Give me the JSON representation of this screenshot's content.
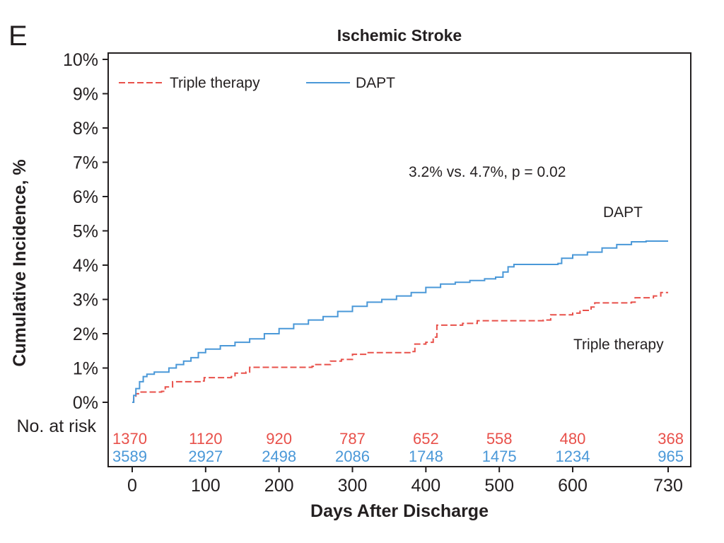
{
  "panel_label": "E",
  "chart_data": {
    "type": "line",
    "title": "Ischemic Stroke",
    "xlabel": "Days After Discharge",
    "ylabel": "Cumulative Incidence, %",
    "xlim": [
      0,
      730
    ],
    "ylim": [
      0,
      10
    ],
    "x_ticks": [
      0,
      100,
      200,
      300,
      400,
      500,
      600,
      730
    ],
    "x_tick_labels": [
      "0",
      "100",
      "200",
      "300",
      "400",
      "500",
      "600",
      "730"
    ],
    "y_ticks": [
      0,
      1,
      2,
      3,
      4,
      5,
      6,
      7,
      8,
      9,
      10
    ],
    "y_tick_labels": [
      "0%",
      "1%",
      "2%",
      "3%",
      "4%",
      "5%",
      "6%",
      "7%",
      "8%",
      "9%",
      "10%"
    ],
    "legend": {
      "placement": "top-left",
      "entries": [
        {
          "label": "Triple therapy",
          "color": "#e8504a",
          "style": "dashed"
        },
        {
          "label": "DAPT",
          "color": "#4a98d8",
          "style": "solid"
        }
      ]
    },
    "annotations": {
      "stat": "3.2% vs. 4.7%, p = 0.02",
      "dapt_label": "DAPT",
      "triple_label": "Triple therapy"
    },
    "series": [
      {
        "name": "Triple therapy",
        "color": "#e8504a",
        "style": "dashed",
        "points": [
          [
            0,
            0
          ],
          [
            2,
            0.15
          ],
          [
            5,
            0.25
          ],
          [
            10,
            0.3
          ],
          [
            40,
            0.32
          ],
          [
            45,
            0.45
          ],
          [
            55,
            0.6
          ],
          [
            95,
            0.62
          ],
          [
            98,
            0.72
          ],
          [
            135,
            0.75
          ],
          [
            140,
            0.85
          ],
          [
            155,
            0.88
          ],
          [
            160,
            1.02
          ],
          [
            245,
            1.05
          ],
          [
            250,
            1.1
          ],
          [
            270,
            1.2
          ],
          [
            285,
            1.25
          ],
          [
            300,
            1.4
          ],
          [
            320,
            1.45
          ],
          [
            380,
            1.48
          ],
          [
            385,
            1.7
          ],
          [
            400,
            1.75
          ],
          [
            410,
            1.9
          ],
          [
            415,
            2.25
          ],
          [
            450,
            2.3
          ],
          [
            470,
            2.38
          ],
          [
            560,
            2.4
          ],
          [
            570,
            2.55
          ],
          [
            600,
            2.6
          ],
          [
            610,
            2.68
          ],
          [
            625,
            2.78
          ],
          [
            630,
            2.9
          ],
          [
            680,
            2.92
          ],
          [
            685,
            3.05
          ],
          [
            710,
            3.1
          ],
          [
            720,
            3.2
          ],
          [
            730,
            3.2
          ]
        ]
      },
      {
        "name": "DAPT",
        "color": "#4a98d8",
        "style": "solid",
        "points": [
          [
            0,
            0
          ],
          [
            2,
            0.2
          ],
          [
            5,
            0.4
          ],
          [
            10,
            0.6
          ],
          [
            15,
            0.75
          ],
          [
            20,
            0.82
          ],
          [
            30,
            0.88
          ],
          [
            50,
            1.0
          ],
          [
            60,
            1.1
          ],
          [
            70,
            1.2
          ],
          [
            80,
            1.3
          ],
          [
            90,
            1.45
          ],
          [
            100,
            1.55
          ],
          [
            120,
            1.65
          ],
          [
            140,
            1.75
          ],
          [
            160,
            1.85
          ],
          [
            180,
            2.0
          ],
          [
            200,
            2.15
          ],
          [
            220,
            2.28
          ],
          [
            240,
            2.4
          ],
          [
            260,
            2.5
          ],
          [
            280,
            2.65
          ],
          [
            300,
            2.8
          ],
          [
            320,
            2.92
          ],
          [
            340,
            3.0
          ],
          [
            360,
            3.1
          ],
          [
            380,
            3.2
          ],
          [
            400,
            3.35
          ],
          [
            420,
            3.45
          ],
          [
            440,
            3.5
          ],
          [
            460,
            3.55
          ],
          [
            480,
            3.6
          ],
          [
            495,
            3.65
          ],
          [
            505,
            3.8
          ],
          [
            512,
            3.95
          ],
          [
            520,
            4.02
          ],
          [
            580,
            4.05
          ],
          [
            585,
            4.2
          ],
          [
            600,
            4.3
          ],
          [
            620,
            4.38
          ],
          [
            640,
            4.5
          ],
          [
            660,
            4.6
          ],
          [
            680,
            4.68
          ],
          [
            700,
            4.7
          ],
          [
            730,
            4.7
          ]
        ]
      }
    ],
    "at_risk": {
      "label": "No. at risk",
      "x": [
        0,
        100,
        200,
        300,
        400,
        500,
        600,
        730
      ],
      "rows": [
        {
          "name": "Triple therapy",
          "color": "#e8504a",
          "values": [
            "1370",
            "1120",
            "920",
            "787",
            "652",
            "558",
            "480",
            "368"
          ]
        },
        {
          "name": "DAPT",
          "color": "#4a98d8",
          "values": [
            "3589",
            "2927",
            "2498",
            "2086",
            "1748",
            "1475",
            "1234",
            "965"
          ]
        }
      ]
    }
  }
}
